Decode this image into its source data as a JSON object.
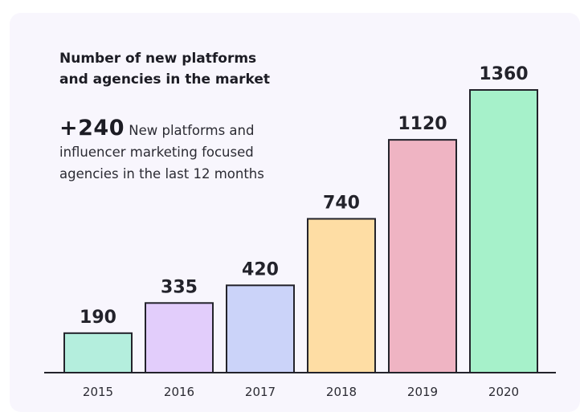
{
  "heading": {
    "line1": "Number of new platforms",
    "line2": "and agencies in the market"
  },
  "stat": {
    "number": "+240",
    "line1": "New platforms and",
    "line2": "influencer marketing focused",
    "line3": "agencies in the last 12 months"
  },
  "chart_data": {
    "type": "bar",
    "title": "Number of new platforms and agencies in the market",
    "categories": [
      "2015",
      "2016",
      "2017",
      "2018",
      "2019",
      "2020"
    ],
    "values": [
      190,
      335,
      420,
      740,
      1120,
      1360
    ],
    "value_labels": [
      "190",
      "335",
      "420",
      "740",
      "1120",
      "1360"
    ],
    "xlabel": "",
    "ylabel": "",
    "ylim": [
      0,
      1360
    ],
    "grid": false,
    "legend": "none",
    "colors": [
      "#b4eedd",
      "#e2cdfb",
      "#cbd3f9",
      "#fedda4",
      "#efb4c3",
      "#a6f1ca"
    ],
    "outline_color": "#23232b",
    "axis_color": "#23232b"
  }
}
